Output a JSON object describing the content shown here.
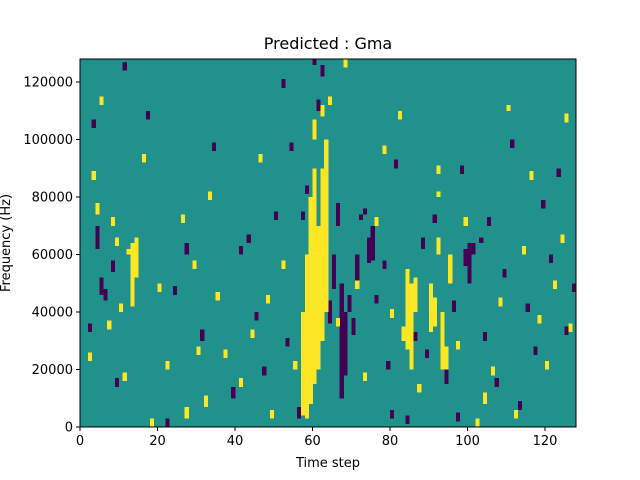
{
  "chart_data": {
    "type": "heatmap",
    "title": "Predicted : Gma",
    "xlabel": "Time step",
    "ylabel": "Frequency (Hz)",
    "xlim": [
      0,
      128
    ],
    "ylim": [
      0,
      128000
    ],
    "x_ticks": [
      0,
      20,
      40,
      60,
      80,
      100,
      120
    ],
    "y_ticks": [
      0,
      20000,
      40000,
      60000,
      80000,
      100000,
      120000
    ],
    "grid": false,
    "colorbar": false,
    "colormap": "viridis",
    "levels": {
      "low": "#440154",
      "mid": "#21918c",
      "high": "#fde725"
    },
    "background_level": "mid",
    "num_time_steps": 128,
    "num_frequency_bins": 128,
    "bin_width_hz": 1000,
    "cells_high": [
      [
        13,
        42,
        64
      ],
      [
        14,
        52,
        66
      ],
      [
        12,
        60,
        62
      ],
      [
        11,
        16,
        19
      ],
      [
        57,
        4,
        40
      ],
      [
        58,
        3,
        60
      ],
      [
        59,
        8,
        80
      ],
      [
        60,
        15,
        90
      ],
      [
        61,
        20,
        70
      ],
      [
        62,
        30,
        90
      ],
      [
        63,
        40,
        100
      ],
      [
        60,
        100,
        107
      ],
      [
        62,
        108,
        112
      ],
      [
        64,
        112,
        115
      ],
      [
        83,
        30,
        35
      ],
      [
        84,
        27,
        55
      ],
      [
        85,
        20,
        50
      ],
      [
        86,
        40,
        52
      ],
      [
        90,
        33,
        50
      ],
      [
        91,
        35,
        45
      ],
      [
        92,
        60,
        66
      ],
      [
        93,
        20,
        40
      ],
      [
        94,
        20,
        28
      ],
      [
        95,
        50,
        60
      ],
      [
        92,
        80,
        82
      ],
      [
        92,
        88,
        91
      ],
      [
        102,
        0,
        3
      ],
      [
        104,
        8,
        12
      ],
      [
        110,
        110,
        112
      ],
      [
        3,
        86,
        89
      ],
      [
        4,
        74,
        78
      ],
      [
        7,
        34,
        37
      ],
      [
        8,
        70,
        73
      ],
      [
        9,
        63,
        66
      ],
      [
        10,
        40,
        43
      ],
      [
        16,
        92,
        95
      ],
      [
        18,
        0,
        3
      ],
      [
        20,
        47,
        50
      ],
      [
        22,
        20,
        23
      ],
      [
        26,
        71,
        74
      ],
      [
        27,
        3,
        7
      ],
      [
        29,
        55,
        58
      ],
      [
        30,
        25,
        28
      ],
      [
        32,
        7,
        11
      ],
      [
        33,
        79,
        82
      ],
      [
        35,
        44,
        47
      ],
      [
        37,
        24,
        27
      ],
      [
        41,
        14,
        17
      ],
      [
        44,
        31,
        34
      ],
      [
        46,
        92,
        95
      ],
      [
        48,
        43,
        46
      ],
      [
        49,
        3,
        6
      ],
      [
        52,
        55,
        58
      ],
      [
        55,
        20,
        23
      ],
      [
        66,
        35,
        38
      ],
      [
        68,
        125,
        128
      ],
      [
        71,
        48,
        51
      ],
      [
        73,
        16,
        19
      ],
      [
        76,
        70,
        73
      ],
      [
        78,
        95,
        98
      ],
      [
        80,
        38,
        41
      ],
      [
        82,
        107,
        110
      ],
      [
        87,
        12,
        15
      ],
      [
        97,
        27,
        30
      ],
      [
        99,
        70,
        73
      ],
      [
        106,
        18,
        21
      ],
      [
        108,
        42,
        45
      ],
      [
        112,
        3,
        6
      ],
      [
        114,
        60,
        63
      ],
      [
        116,
        86,
        89
      ],
      [
        118,
        36,
        39
      ],
      [
        120,
        20,
        23
      ],
      [
        122,
        48,
        51
      ],
      [
        124,
        64,
        67
      ],
      [
        125,
        106,
        109
      ],
      [
        126,
        33,
        36
      ],
      [
        2,
        23,
        26
      ],
      [
        5,
        112,
        115
      ]
    ],
    "cells_low": [
      [
        64,
        36,
        44
      ],
      [
        65,
        48,
        60
      ],
      [
        66,
        70,
        78
      ],
      [
        67,
        10,
        50
      ],
      [
        68,
        18,
        40
      ],
      [
        69,
        40,
        46
      ],
      [
        70,
        32,
        38
      ],
      [
        71,
        50,
        60
      ],
      [
        72,
        72,
        74
      ],
      [
        73,
        74,
        76
      ],
      [
        74,
        57,
        66
      ],
      [
        75,
        58,
        70
      ],
      [
        88,
        62,
        66
      ],
      [
        94,
        15,
        22
      ],
      [
        96,
        40,
        44
      ],
      [
        99,
        56,
        62
      ],
      [
        100,
        50,
        64
      ],
      [
        101,
        60,
        64
      ],
      [
        103,
        64,
        66
      ],
      [
        4,
        62,
        70
      ],
      [
        5,
        46,
        52
      ],
      [
        6,
        44,
        48
      ],
      [
        8,
        54,
        58
      ],
      [
        9,
        14,
        17
      ],
      [
        22,
        0,
        3
      ],
      [
        27,
        60,
        64
      ],
      [
        31,
        30,
        34
      ],
      [
        39,
        10,
        14
      ],
      [
        43,
        64,
        67
      ],
      [
        45,
        37,
        40
      ],
      [
        50,
        72,
        75
      ],
      [
        53,
        28,
        31
      ],
      [
        54,
        96,
        99
      ],
      [
        56,
        3,
        7
      ],
      [
        58,
        81,
        84
      ],
      [
        61,
        110,
        114
      ],
      [
        62,
        122,
        126
      ],
      [
        76,
        43,
        46
      ],
      [
        78,
        55,
        58
      ],
      [
        79,
        20,
        23
      ],
      [
        80,
        3,
        6
      ],
      [
        81,
        90,
        93
      ],
      [
        84,
        1,
        4
      ],
      [
        86,
        30,
        33
      ],
      [
        89,
        24,
        27
      ],
      [
        91,
        71,
        74
      ],
      [
        97,
        2,
        5
      ],
      [
        98,
        88,
        91
      ],
      [
        104,
        30,
        33
      ],
      [
        105,
        70,
        73
      ],
      [
        107,
        14,
        17
      ],
      [
        109,
        52,
        55
      ],
      [
        111,
        97,
        100
      ],
      [
        113,
        6,
        9
      ],
      [
        115,
        40,
        43
      ],
      [
        117,
        25,
        28
      ],
      [
        119,
        76,
        79
      ],
      [
        121,
        57,
        60
      ],
      [
        123,
        87,
        90
      ],
      [
        125,
        32,
        35
      ],
      [
        127,
        47,
        50
      ],
      [
        2,
        33,
        36
      ],
      [
        3,
        104,
        107
      ],
      [
        11,
        124,
        127
      ],
      [
        17,
        107,
        110
      ],
      [
        24,
        46,
        49
      ],
      [
        34,
        96,
        99
      ],
      [
        41,
        60,
        63
      ],
      [
        47,
        18,
        21
      ],
      [
        52,
        118,
        121
      ],
      [
        57,
        72,
        75
      ],
      [
        60,
        126,
        128
      ]
    ]
  }
}
